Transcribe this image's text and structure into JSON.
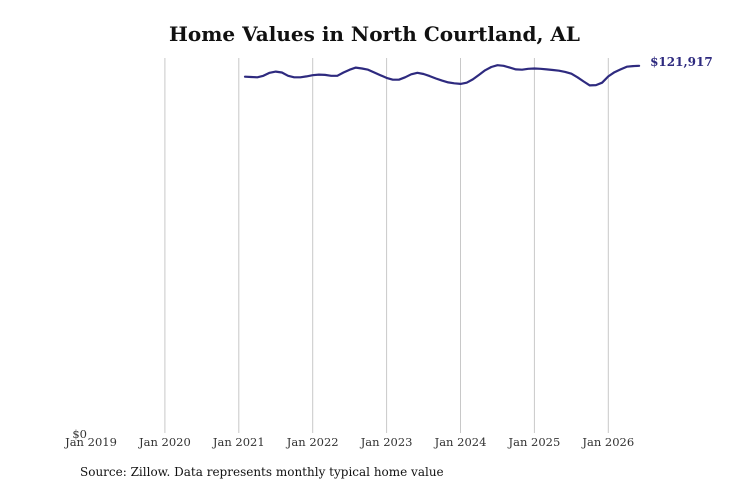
{
  "title": "Home Values in North Courtland, AL",
  "source": "Source: Zillow. Data represents monthly typical home value",
  "colors": {
    "line": "#2e2a7f",
    "grid": "#c8c8c8",
    "text": "#333333"
  },
  "chart_data": {
    "type": "line",
    "title": "Home Values in North Courtland, AL",
    "xlabel": "",
    "ylabel": "",
    "x_ticks": [
      "Jan 2019",
      "Jan 2020",
      "Jan 2021",
      "Jan 2022",
      "Jan 2023",
      "Jan 2024",
      "Jan 2025",
      "Jan 2026"
    ],
    "y_ticks": [
      "$0"
    ],
    "xlim": [
      "2019-01",
      "2026-09"
    ],
    "ylim": [
      0,
      124500
    ],
    "grid": "vertical",
    "end_label": "$121,917",
    "series": [
      {
        "x": [
          "2021-02",
          "2021-03",
          "2021-04",
          "2021-05",
          "2021-06",
          "2021-07",
          "2021-08",
          "2021-09",
          "2021-10",
          "2021-11",
          "2021-12",
          "2022-01",
          "2022-02",
          "2022-03",
          "2022-04",
          "2022-05",
          "2022-06",
          "2022-07",
          "2022-08",
          "2022-09",
          "2022-10",
          "2022-11",
          "2022-12",
          "2023-01",
          "2023-02",
          "2023-03",
          "2023-04",
          "2023-05",
          "2023-06",
          "2023-07",
          "2023-08",
          "2023-09",
          "2023-10",
          "2023-11",
          "2023-12",
          "2024-01",
          "2024-02",
          "2024-03",
          "2024-04",
          "2024-05",
          "2024-06",
          "2024-07",
          "2024-08",
          "2024-09",
          "2024-10",
          "2024-11",
          "2024-12",
          "2025-01",
          "2025-02",
          "2025-03",
          "2025-04",
          "2025-05",
          "2025-06",
          "2025-07",
          "2025-08",
          "2025-09",
          "2025-10",
          "2025-11",
          "2025-12",
          "2026-01",
          "2026-02",
          "2026-03",
          "2026-04",
          "2026-05",
          "2026-06"
        ],
        "values": [
          118300,
          118200,
          118100,
          118600,
          119600,
          120000,
          119700,
          118600,
          118100,
          118100,
          118400,
          118800,
          119000,
          118900,
          118600,
          118600,
          119700,
          120600,
          121300,
          121000,
          120600,
          119700,
          118800,
          117900,
          117300,
          117300,
          118100,
          119100,
          119600,
          119200,
          118500,
          117700,
          117000,
          116400,
          116100,
          115900,
          116300,
          117400,
          118900,
          120400,
          121500,
          122100,
          121900,
          121300,
          120700,
          120600,
          120900,
          121000,
          120900,
          120700,
          120500,
          120300,
          119900,
          119300,
          118100,
          116700,
          115400,
          115500,
          116300,
          118400,
          119800,
          120700,
          121600,
          121800,
          121917
        ]
      }
    ]
  }
}
